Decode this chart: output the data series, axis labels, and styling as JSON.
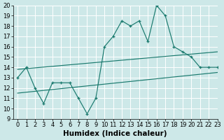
{
  "xlabel": "Humidex (Indice chaleur)",
  "ylabel": "",
  "xlim": [
    -0.5,
    23
  ],
  "ylim": [
    9,
    20
  ],
  "xticks": [
    0,
    1,
    2,
    3,
    4,
    5,
    6,
    7,
    8,
    9,
    10,
    11,
    12,
    13,
    14,
    15,
    16,
    17,
    18,
    19,
    20,
    21,
    22,
    23
  ],
  "yticks": [
    9,
    10,
    11,
    12,
    13,
    14,
    15,
    16,
    17,
    18,
    19,
    20
  ],
  "main_x": [
    0,
    1,
    2,
    3,
    4,
    5,
    6,
    7,
    8,
    9,
    10,
    11,
    12,
    13,
    14,
    15,
    16,
    17,
    18,
    19,
    20,
    21,
    22,
    23
  ],
  "main_y": [
    13,
    14,
    12,
    10.5,
    12.5,
    12.5,
    12.5,
    11,
    9.5,
    11,
    16,
    17,
    18.5,
    18,
    18.5,
    16.5,
    20,
    19,
    16,
    15.5,
    15,
    14,
    14,
    14
  ],
  "upper_line": [
    13.8,
    15.5
  ],
  "lower_line": [
    11.5,
    13.5
  ],
  "line_color": "#1a7a6e",
  "bg_color": "#cde8e8",
  "grid_color": "#b8d8d8",
  "tick_fontsize": 6,
  "xlabel_fontsize": 7.5,
  "marker": "+"
}
